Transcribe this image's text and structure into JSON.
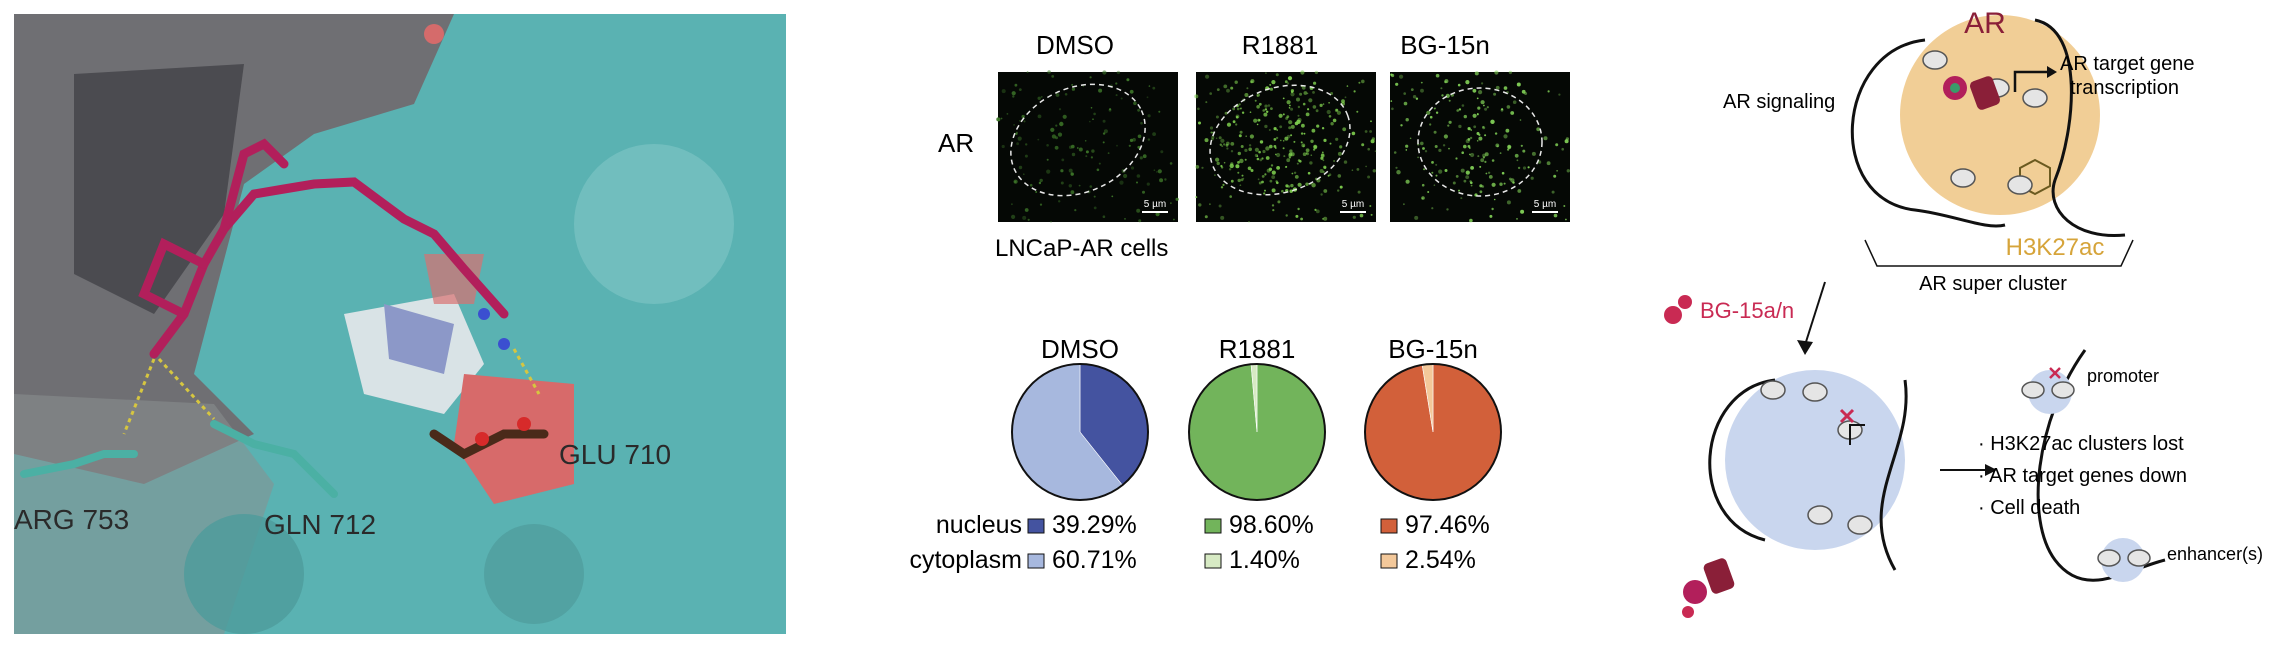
{
  "docking": {
    "residues": [
      "ARG 753",
      "GLN 712",
      "GLU 710"
    ]
  },
  "imaging": {
    "conditions": [
      "DMSO",
      "R1881",
      "BG-15n"
    ],
    "row_label": "AR",
    "scale_bar": "5 µm",
    "cell_line": "LNCaP-AR cells"
  },
  "chart_data": {
    "type": "pie",
    "charts": [
      {
        "title": "DMSO",
        "slices": [
          {
            "name": "nucleus",
            "value": 39.29
          },
          {
            "name": "cytoplasm",
            "value": 60.71
          }
        ]
      },
      {
        "title": "R1881",
        "slices": [
          {
            "name": "nucleus",
            "value": 98.6
          },
          {
            "name": "cytoplasm",
            "value": 1.4
          }
        ]
      },
      {
        "title": "BG-15n",
        "slices": [
          {
            "name": "nucleus",
            "value": 97.46
          },
          {
            "name": "cytoplasm",
            "value": 2.54
          }
        ]
      }
    ],
    "row_labels": [
      "nucleus",
      "cytoplasm"
    ],
    "value_labels": [
      [
        "39.29%",
        "60.71%"
      ],
      [
        "98.60%",
        "1.40%"
      ],
      [
        "97.46%",
        "2.54%"
      ]
    ],
    "colors": {
      "DMSO": {
        "nucleus": "#4453a0",
        "cytoplasm": "#a7b8de"
      },
      "R1881": {
        "nucleus": "#72b45b",
        "cytoplasm": "#d7eac4"
      },
      "BG-15n": {
        "nucleus": "#d2603a",
        "cytoplasm": "#f3c89a"
      }
    }
  },
  "schematic": {
    "ar": "AR",
    "ar_signaling": "AR signaling",
    "ar_target_line1": "AR target gene",
    "ar_target_line2": "transcription",
    "h3k27ac": "H3K27ac",
    "ar_super_cluster": "AR super cluster",
    "compound": "BG-15a/n",
    "promoter": "promoter",
    "enhancer": "enhancer(s)",
    "outcomes": [
      "· H3K27ac clusters lost",
      "· AR target genes down",
      "· Cell death"
    ]
  }
}
